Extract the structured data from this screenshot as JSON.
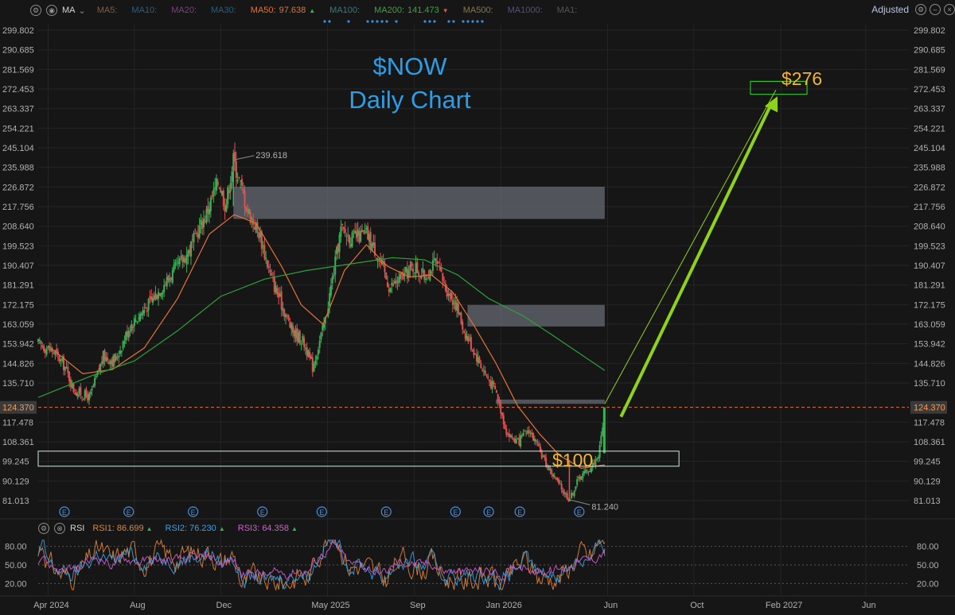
{
  "toolbar": {
    "indicator_name": "MA",
    "ma_items": [
      {
        "label": "MA5:",
        "value": "",
        "color": "#8c5a2e"
      },
      {
        "label": "MA10:",
        "value": "",
        "color": "#2b5f86"
      },
      {
        "label": "MA20:",
        "value": "",
        "color": "#7b3f7f"
      },
      {
        "label": "MA30:",
        "value": "",
        "color": "#2c5d78"
      },
      {
        "label": "MA50:",
        "value": "97.638",
        "color": "#e0733a",
        "arrow": "▲"
      },
      {
        "label": "MA100:",
        "value": "",
        "color": "#2c7f86"
      },
      {
        "label": "MA200:",
        "value": "141.473",
        "color": "#3ea33a",
        "arrow": "▼"
      },
      {
        "label": "MA500:",
        "value": "",
        "color": "#8c7a30"
      },
      {
        "label": "MA1000:",
        "value": "",
        "color": "#5a4a8c"
      },
      {
        "label": "MA1:",
        "value": "",
        "color": "#555555"
      }
    ],
    "adjusted_label": "Adjusted"
  },
  "title": {
    "line1": "$NOW",
    "line2": "Daily Chart"
  },
  "annotations": {
    "high_label": "239.618",
    "low_label": "81.240",
    "price_tag": "124.370",
    "support_label": "$100",
    "target_label": "$276"
  },
  "rsi_bar": {
    "name": "RSI",
    "items": [
      {
        "label": "RSI1:",
        "value": "86.699",
        "color": "#e0833a"
      },
      {
        "label": "RSI2:",
        "value": "76.230",
        "color": "#3ea0e0"
      },
      {
        "label": "RSI3:",
        "value": "64.358",
        "color": "#d15fd1"
      }
    ]
  },
  "colors": {
    "background": "#161616",
    "grid": "#252525",
    "axis_text": "#b0b0b0",
    "up_candle": "#3fae57",
    "down_candle": "#e05252",
    "ma50": "#e0733a",
    "ma200": "#2fa03a",
    "zone": "#6b6f78",
    "support_box": "#cfe8e0",
    "target_arrow": "#8fd21c",
    "target_box": "#2fbf2f",
    "price_line": "#e0733a",
    "title": "#2d9ee6",
    "label_gold": "#f3b530"
  },
  "chart_data": {
    "type": "candlestick",
    "y_axis_ticks": [
      "299.802",
      "290.685",
      "281.569",
      "272.453",
      "263.337",
      "254.221",
      "245.104",
      "235.988",
      "226.872",
      "217.756",
      "208.640",
      "199.523",
      "190.407",
      "181.291",
      "172.175",
      "163.059",
      "153.942",
      "144.826",
      "135.710",
      "124.370",
      "117.478",
      "108.361",
      "99.245",
      "90.129",
      "81.013"
    ],
    "ylim": [
      81.013,
      299.802
    ],
    "x_axis_ticks": [
      "Apr 2024",
      "Aug",
      "Dec",
      "May 2025",
      "Sep",
      "Jan 2026",
      "Jun",
      "Oct",
      "Feb 2027",
      "Jun"
    ],
    "x_date_range": [
      "2024-03-18",
      "2027-08-01"
    ],
    "last_date": "2026-05-28",
    "last_price": 124.37,
    "high": {
      "date": "2024-12-19",
      "value": 239.618
    },
    "low": {
      "date": "2026-04-08",
      "value": 81.24
    },
    "price_path": [
      [
        "2024-03-18",
        154
      ],
      [
        "2024-04-10",
        150
      ],
      [
        "2024-04-25",
        143
      ],
      [
        "2024-05-08",
        132
      ],
      [
        "2024-05-30",
        129
      ],
      [
        "2024-06-18",
        148
      ],
      [
        "2024-07-05",
        146
      ],
      [
        "2024-07-25",
        162
      ],
      [
        "2024-08-20",
        172
      ],
      [
        "2024-09-15",
        183
      ],
      [
        "2024-10-15",
        196
      ],
      [
        "2024-11-10",
        214
      ],
      [
        "2024-11-28",
        230
      ],
      [
        "2024-12-08",
        218
      ],
      [
        "2024-12-19",
        239.6
      ],
      [
        "2025-01-08",
        216
      ],
      [
        "2025-01-25",
        205
      ],
      [
        "2025-02-10",
        185
      ],
      [
        "2025-02-28",
        170
      ],
      [
        "2025-03-12",
        160
      ],
      [
        "2025-03-28",
        155
      ],
      [
        "2025-04-10",
        143
      ],
      [
        "2025-04-28",
        165
      ],
      [
        "2025-05-10",
        188
      ],
      [
        "2025-05-20",
        207
      ],
      [
        "2025-06-05",
        203
      ],
      [
        "2025-06-25",
        205
      ],
      [
        "2025-07-10",
        196
      ],
      [
        "2025-07-28",
        180
      ],
      [
        "2025-08-15",
        185
      ],
      [
        "2025-09-01",
        190
      ],
      [
        "2025-09-15",
        185
      ],
      [
        "2025-10-01",
        192
      ],
      [
        "2025-10-15",
        180
      ],
      [
        "2025-10-30",
        172
      ],
      [
        "2025-11-10",
        160
      ],
      [
        "2025-11-25",
        150
      ],
      [
        "2025-12-10",
        140
      ],
      [
        "2025-12-25",
        132
      ],
      [
        "2026-01-10",
        112
      ],
      [
        "2026-01-25",
        108
      ],
      [
        "2026-02-10",
        114
      ],
      [
        "2026-02-25",
        104
      ],
      [
        "2026-03-10",
        96
      ],
      [
        "2026-03-25",
        88
      ],
      [
        "2026-04-08",
        81.24
      ],
      [
        "2026-04-22",
        92
      ],
      [
        "2026-05-08",
        96
      ],
      [
        "2026-05-20",
        103
      ],
      [
        "2026-05-28",
        124.37
      ]
    ],
    "series": [
      {
        "name": "MA50",
        "points": [
          [
            "2024-04-01",
            153
          ],
          [
            "2024-05-20",
            140
          ],
          [
            "2024-07-01",
            142
          ],
          [
            "2024-08-15",
            152
          ],
          [
            "2024-10-01",
            175
          ],
          [
            "2024-11-15",
            205
          ],
          [
            "2024-12-20",
            214
          ],
          [
            "2025-01-20",
            210
          ],
          [
            "2025-02-25",
            190
          ],
          [
            "2025-03-25",
            172
          ],
          [
            "2025-04-25",
            163
          ],
          [
            "2025-05-25",
            188
          ],
          [
            "2025-06-25",
            200
          ],
          [
            "2025-07-25",
            190
          ],
          [
            "2025-08-25",
            185
          ],
          [
            "2025-09-25",
            186
          ],
          [
            "2025-10-25",
            178
          ],
          [
            "2025-11-25",
            162
          ],
          [
            "2025-12-25",
            145
          ],
          [
            "2026-01-25",
            125
          ],
          [
            "2026-02-25",
            112
          ],
          [
            "2026-03-25",
            102
          ],
          [
            "2026-04-25",
            96
          ],
          [
            "2026-05-28",
            97.6
          ]
        ]
      },
      {
        "name": "MA200",
        "points": [
          [
            "2024-03-18",
            129
          ],
          [
            "2024-06-01",
            139
          ],
          [
            "2024-08-01",
            146
          ],
          [
            "2024-10-01",
            160
          ],
          [
            "2024-12-01",
            176
          ],
          [
            "2025-02-01",
            184
          ],
          [
            "2025-04-01",
            188
          ],
          [
            "2025-06-01",
            191
          ],
          [
            "2025-08-01",
            194
          ],
          [
            "2025-09-15",
            193
          ],
          [
            "2025-11-01",
            186
          ],
          [
            "2025-12-15",
            175
          ],
          [
            "2026-02-01",
            167
          ],
          [
            "2026-03-15",
            158
          ],
          [
            "2026-05-28",
            141.5
          ]
        ]
      }
    ],
    "zones": [
      {
        "from": "2024-12-19",
        "to": "2026-05-28",
        "top": 227,
        "bottom": 212
      },
      {
        "from": "2025-11-15",
        "to": "2026-05-28",
        "top": 172,
        "bottom": 162
      },
      {
        "from": "2025-12-25",
        "to": "2026-05-28",
        "top": 128,
        "bottom": 126
      }
    ],
    "support_box": {
      "from": "2024-03-18",
      "to": "2026-09-10",
      "top": 104,
      "bottom": 97
    },
    "target_box": {
      "from": "2026-12-20",
      "to": "2027-03-10",
      "top": 276,
      "bottom": 270
    },
    "target_arrow": {
      "from": [
        "2026-05-28",
        126
      ],
      "to": [
        "2027-01-25",
        272
      ]
    },
    "earnings_dates": [
      "2024-04-24",
      "2024-07-24",
      "2024-10-23",
      "2025-01-29",
      "2025-04-23",
      "2025-07-23",
      "2025-10-29",
      "2025-12-15",
      "2026-01-28",
      "2026-04-22"
    ],
    "rsi": {
      "yticks": [
        "80.00",
        "50.00",
        "20.00"
      ],
      "ylim": [
        5,
        95
      ]
    }
  }
}
